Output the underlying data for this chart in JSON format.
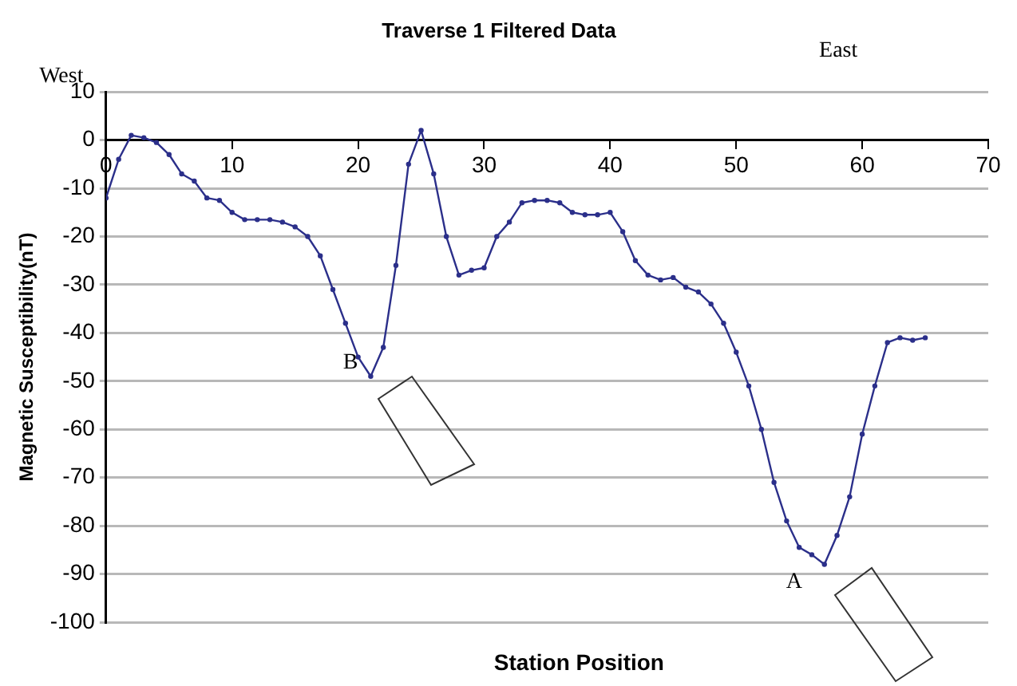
{
  "chart_data": {
    "type": "line",
    "title": "Traverse 1 Filtered Data",
    "xlabel": "Station Position",
    "ylabel": "Magnetic Susceptibility(nT)",
    "annotations": [
      "West",
      "East",
      "B",
      "A"
    ],
    "x": [
      0,
      1,
      2,
      3,
      4,
      5,
      6,
      7,
      8,
      9,
      10,
      11,
      12,
      13,
      14,
      15,
      16,
      17,
      18,
      19,
      20,
      21,
      22,
      23,
      24,
      25,
      26,
      27,
      28,
      29,
      30,
      31,
      32,
      33,
      34,
      35,
      36,
      37,
      38,
      39,
      40,
      41,
      42,
      43,
      44,
      45,
      46,
      47,
      48,
      49,
      50,
      51,
      52,
      53,
      54,
      55,
      56,
      57,
      58,
      59,
      60,
      61,
      62,
      63,
      64,
      65
    ],
    "series": [
      {
        "color": "#2b2f8a",
        "values": [
          -12,
          -4,
          1,
          0.5,
          -0.5,
          -3,
          -7,
          -8.5,
          -12,
          -12.5,
          -15,
          -16.5,
          -16.5,
          -16.5,
          -17,
          -18,
          -20,
          -24,
          -31,
          -38,
          -45,
          -49,
          -43,
          -26,
          -5,
          2,
          -7,
          -20,
          -28,
          -27,
          -26.5,
          -20,
          -17,
          -13,
          -12.5,
          -12.5,
          -13,
          -15,
          -15.5,
          -15.5,
          -15,
          -19,
          -25,
          -28,
          -29,
          -28.5,
          -30.5,
          -31.5,
          -34,
          -38,
          -44,
          -51,
          -60,
          -71,
          -79,
          -84.5,
          -86,
          -88,
          -82,
          -74,
          -61,
          -51,
          -42,
          -41,
          -41.5,
          -41
        ]
      }
    ],
    "xlim": [
      0,
      70
    ],
    "xticks": [
      0,
      10,
      20,
      30,
      40,
      50,
      60,
      70
    ],
    "ylim": [
      -100,
      10
    ],
    "yticks": [
      -100,
      -90,
      -80,
      -70,
      -60,
      -50,
      -40,
      -30,
      -20,
      -10,
      0,
      10
    ],
    "grid": "y",
    "legend": false,
    "marker": "circle",
    "line_style": "solid"
  }
}
